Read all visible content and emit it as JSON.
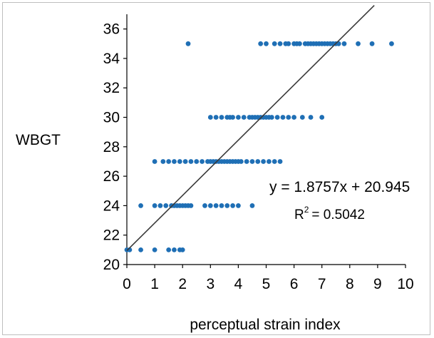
{
  "chart_data": {
    "type": "scatter",
    "title": "",
    "xlabel": "perceptual strain index",
    "ylabel": "WBGT",
    "xlim": [
      0,
      10
    ],
    "ylim": [
      20,
      37
    ],
    "xticks": [
      "0",
      "1",
      "2",
      "3",
      "4",
      "5",
      "6",
      "7",
      "8",
      "9",
      "10"
    ],
    "yticks": [
      "20",
      "22",
      "24",
      "26",
      "28",
      "30",
      "32",
      "34",
      "36"
    ],
    "grid": false,
    "legend": "none",
    "marker_color": "#1f6fb5",
    "trendline": {
      "slope": 1.8757,
      "intercept": 20.945,
      "equation": "y = 1.8757x + 20.945",
      "r2_label": "R",
      "r2_sup": "2",
      "r2_value": "= 0.5042",
      "color": "#3a3a3a"
    },
    "series": [
      {
        "x": [
          0.0,
          0.1,
          0.5,
          1.0,
          1.5,
          1.7,
          1.9,
          2.0,
          0.5,
          1.0,
          1.2,
          1.4,
          1.6,
          1.7,
          1.8,
          1.9,
          2.0,
          2.1,
          2.2,
          2.3,
          2.8,
          3.0,
          3.2,
          3.4,
          3.6,
          3.8,
          4.0,
          4.5,
          1.0,
          1.3,
          1.5,
          1.7,
          1.9,
          2.1,
          2.3,
          2.5,
          2.7,
          2.9,
          3.0,
          3.1,
          3.2,
          3.3,
          3.4,
          3.5,
          3.6,
          3.7,
          3.8,
          3.9,
          4.0,
          4.1,
          4.3,
          4.5,
          4.7,
          4.9,
          5.1,
          5.3,
          5.5,
          3.0,
          3.2,
          3.4,
          3.6,
          3.7,
          3.8,
          4.0,
          4.2,
          4.4,
          4.5,
          4.6,
          4.7,
          4.8,
          4.9,
          5.0,
          5.1,
          5.2,
          5.4,
          5.6,
          5.8,
          6.0,
          6.3,
          6.6,
          7.0,
          2.2,
          4.8,
          5.0,
          5.3,
          5.5,
          5.7,
          5.8,
          6.0,
          6.1,
          6.2,
          6.4,
          6.5,
          6.6,
          6.7,
          6.8,
          6.9,
          7.0,
          7.1,
          7.2,
          7.3,
          7.4,
          7.5,
          7.6,
          7.8,
          8.3,
          8.8,
          9.5
        ],
        "y": [
          21,
          21,
          21,
          21,
          21,
          21,
          21,
          21,
          24,
          24,
          24,
          24,
          24,
          24,
          24,
          24,
          24,
          24,
          24,
          24,
          24,
          24,
          24,
          24,
          24,
          24,
          24,
          24,
          27,
          27,
          27,
          27,
          27,
          27,
          27,
          27,
          27,
          27,
          27,
          27,
          27,
          27,
          27,
          27,
          27,
          27,
          27,
          27,
          27,
          27,
          27,
          27,
          27,
          27,
          27,
          27,
          27,
          30,
          30,
          30,
          30,
          30,
          30,
          30,
          30,
          30,
          30,
          30,
          30,
          30,
          30,
          30,
          30,
          30,
          30,
          30,
          30,
          30,
          30,
          30,
          30,
          35,
          35,
          35,
          35,
          35,
          35,
          35,
          35,
          35,
          35,
          35,
          35,
          35,
          35,
          35,
          35,
          35,
          35,
          35,
          35,
          35,
          35,
          35,
          35,
          35,
          35,
          35
        ]
      }
    ]
  }
}
